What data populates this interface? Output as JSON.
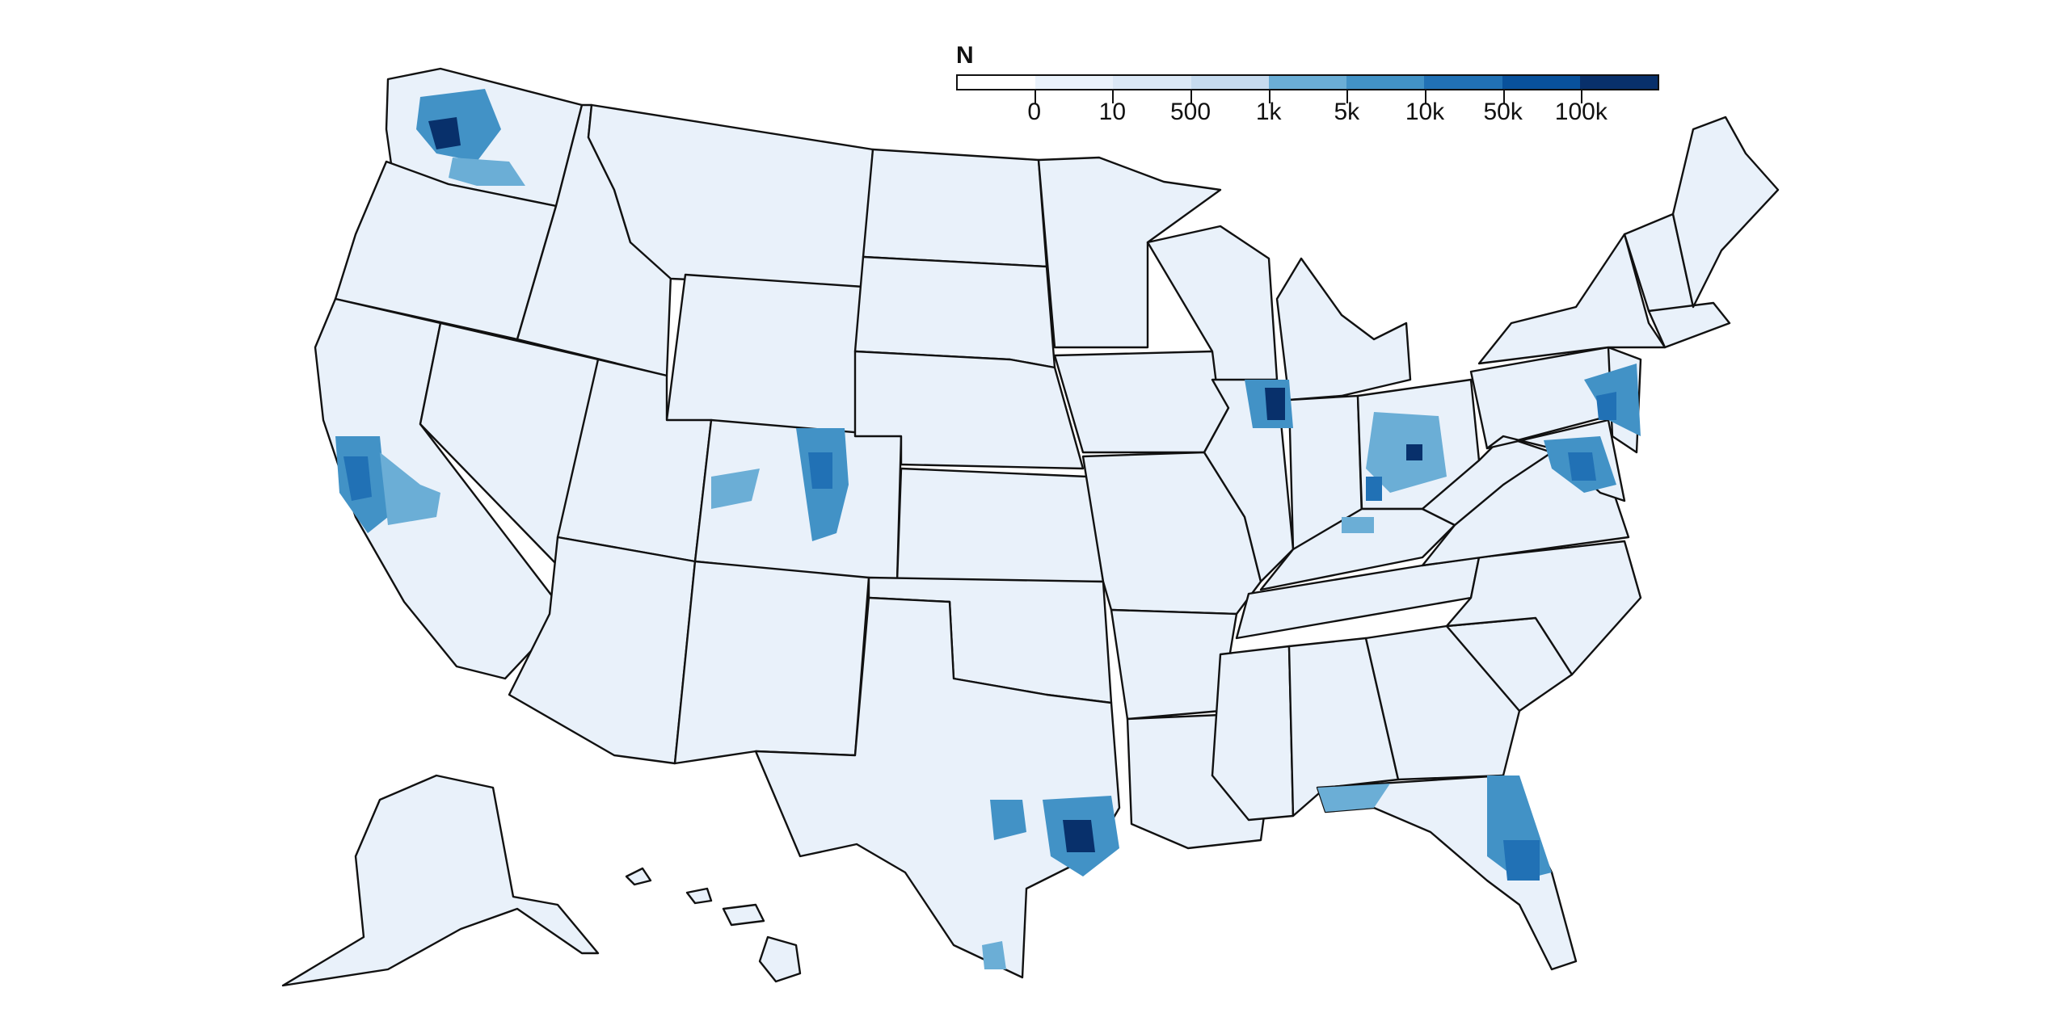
{
  "legend": {
    "title": "N",
    "tick_labels": [
      "0",
      "10",
      "500",
      "1k",
      "5k",
      "10k",
      "50k",
      "100k"
    ],
    "colors": [
      "#ffffff",
      "#eaf2fb",
      "#dbe8f6",
      "#c6dbef",
      "#6baed6",
      "#4292c6",
      "#2171b5",
      "#08519c",
      "#08306b"
    ]
  },
  "map": {
    "base_fill": "#e9f1fa",
    "light_fill": "#dbe8f6",
    "empty_fill": "#ffffff",
    "scale_colors": {
      "level_1k": "#9ecae1",
      "level_5k": "#6baed6",
      "level_10k": "#4292c6",
      "level_50k": "#2171b5",
      "level_100k": "#08306b"
    }
  }
}
